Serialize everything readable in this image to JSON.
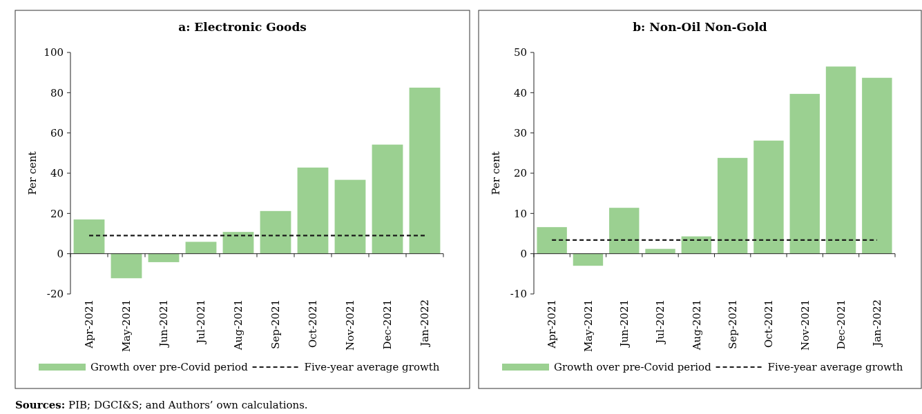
{
  "chart_data": [
    {
      "type": "bar",
      "title": "a: Electronic Goods",
      "ylabel": "Per cent",
      "categories": [
        "Apr-2021",
        "May-2021",
        "Jun-2021",
        "Jul-2021",
        "Aug-2021",
        "Sep-2021",
        "Oct-2021",
        "Nov-2021",
        "Dec-2021",
        "Jan-2022"
      ],
      "series": [
        {
          "name": "Growth over pre-Covid period",
          "color": "#9bd091",
          "values": [
            17.0,
            -12.2,
            -4.2,
            5.9,
            10.8,
            21.2,
            42.8,
            36.7,
            54.2,
            82.5
          ]
        },
        {
          "name": "Five-year average growth",
          "type": "line",
          "line_style": "dashed",
          "color": "#1a1a1a",
          "values": [
            9.0,
            9.0,
            9.0,
            9.0,
            9.0,
            9.0,
            9.0,
            9.0,
            9.0,
            9.0
          ]
        }
      ],
      "ylim": [
        -20,
        100
      ],
      "yticks": [
        -20,
        0,
        20,
        40,
        60,
        80,
        100
      ],
      "legend": "bottom",
      "annotations": [
        "Sources: PIB; DGCI&S; and Authors’ own calculations."
      ]
    },
    {
      "type": "bar",
      "title": "b: Non-Oil Non-Gold",
      "ylabel": "Per cent",
      "categories": [
        "Apr-2021",
        "May-2021",
        "Jun-2021",
        "Jul-2021",
        "Aug-2021",
        "Sep-2021",
        "Oct-2021",
        "Nov-2021",
        "Dec-2021",
        "Jan-2022"
      ],
      "series": [
        {
          "name": "Growth over pre-Covid period",
          "color": "#9bd091",
          "values": [
            6.6,
            -3.0,
            11.4,
            1.2,
            4.3,
            23.8,
            28.1,
            39.7,
            46.5,
            43.7
          ]
        },
        {
          "name": "Five-year average growth",
          "type": "line",
          "line_style": "dashed",
          "color": "#1a1a1a",
          "values": [
            3.4,
            3.4,
            3.4,
            3.4,
            3.4,
            3.4,
            3.4,
            3.4,
            3.4,
            3.4
          ]
        }
      ],
      "ylim": [
        -10,
        50
      ],
      "yticks": [
        -10,
        0,
        10,
        20,
        30,
        40,
        50
      ],
      "legend": "bottom"
    }
  ]
}
